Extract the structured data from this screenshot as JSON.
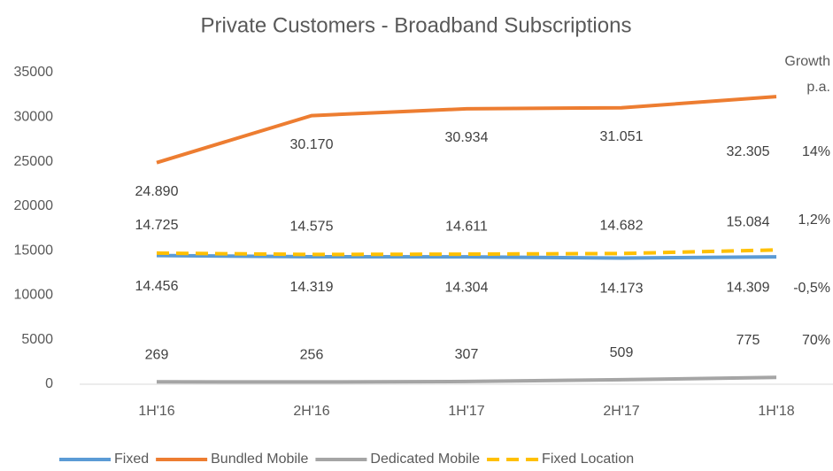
{
  "chart_data": {
    "type": "line",
    "title": "Private Customers - Broadband Subscriptions",
    "categories": [
      "1H'16",
      "2H'16",
      "1H'17",
      "2H'17",
      "1H'18"
    ],
    "ylim": [
      0,
      35000
    ],
    "yticks": [
      0,
      5000,
      10000,
      15000,
      20000,
      25000,
      30000,
      35000
    ],
    "growth_title": [
      "Growth",
      "p.a."
    ],
    "series": [
      {
        "name": "Fixed",
        "color": "#5b9bd5",
        "values": [
          14456,
          14319,
          14304,
          14173,
          14309
        ],
        "value_labels": [
          "14.456",
          "14.319",
          "14.304",
          "14.173",
          "14.309"
        ],
        "growth": "-0,5%"
      },
      {
        "name": "Bundled Mobile",
        "color": "#ed7d31",
        "values": [
          24890,
          30170,
          30934,
          31051,
          32305
        ],
        "value_labels": [
          "24.890",
          "30.170",
          "30.934",
          "31.051",
          "32.305"
        ],
        "growth": "14%"
      },
      {
        "name": "Dedicated Mobile",
        "color": "#a5a5a5",
        "values": [
          269,
          256,
          307,
          509,
          775
        ],
        "value_labels": [
          "269",
          "256",
          "307",
          "509",
          "775"
        ],
        "growth": "70%"
      },
      {
        "name": "Fixed Location",
        "color": "#ffc000",
        "dashed": true,
        "values": [
          14725,
          14575,
          14611,
          14682,
          15084
        ],
        "value_labels": [
          "14.725",
          "14.575",
          "14.611",
          "14.682",
          "15.084"
        ],
        "growth": "1,2%"
      }
    ]
  }
}
